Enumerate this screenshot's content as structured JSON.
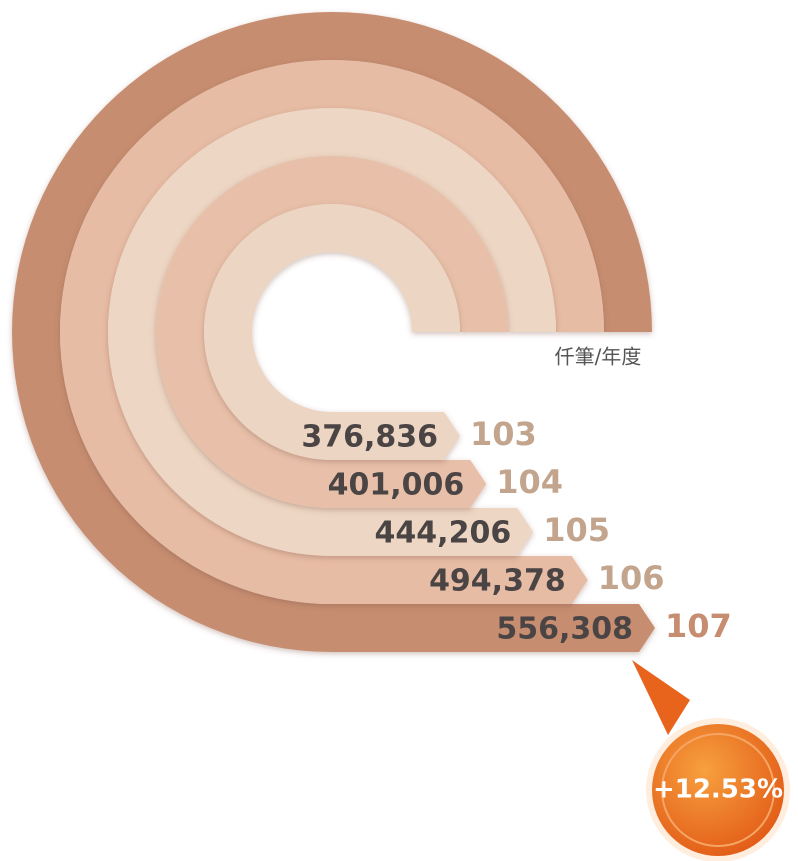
{
  "chart_data": {
    "type": "radial_bar",
    "unit_label": "仟筆/年度",
    "categories": [
      "103",
      "104",
      "105",
      "106",
      "107"
    ],
    "values": [
      376836,
      401006,
      444206,
      494378,
      556308
    ],
    "value_labels": [
      "376,836",
      "401,006",
      "444,206",
      "494,378",
      "556,308"
    ],
    "colors": [
      "#ecd5c2",
      "#e8c0a9",
      "#edd6c3",
      "#e7bca4",
      "#c68d70"
    ],
    "category_colors": [
      "#c3a58e",
      "#c3a58e",
      "#c3a58e",
      "#c3a58e",
      "#c68d70"
    ],
    "annotation": "+12.53%"
  }
}
